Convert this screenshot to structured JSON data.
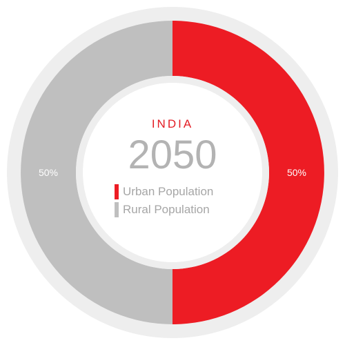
{
  "chart_data": {
    "type": "pie",
    "style": "donut",
    "title": "INDIA",
    "subtitle": "2050",
    "categories": [
      "Urban Population",
      "Rural Population"
    ],
    "values": [
      50,
      50
    ],
    "value_labels": [
      "50%",
      "50%"
    ],
    "colors": [
      "#ed1c24",
      "#bfbfbf"
    ],
    "legend_position": "center"
  },
  "colors": {
    "accent": "#e31b23",
    "muted_text": "#b3b3b3",
    "ring_outline": "#eeeeee"
  }
}
